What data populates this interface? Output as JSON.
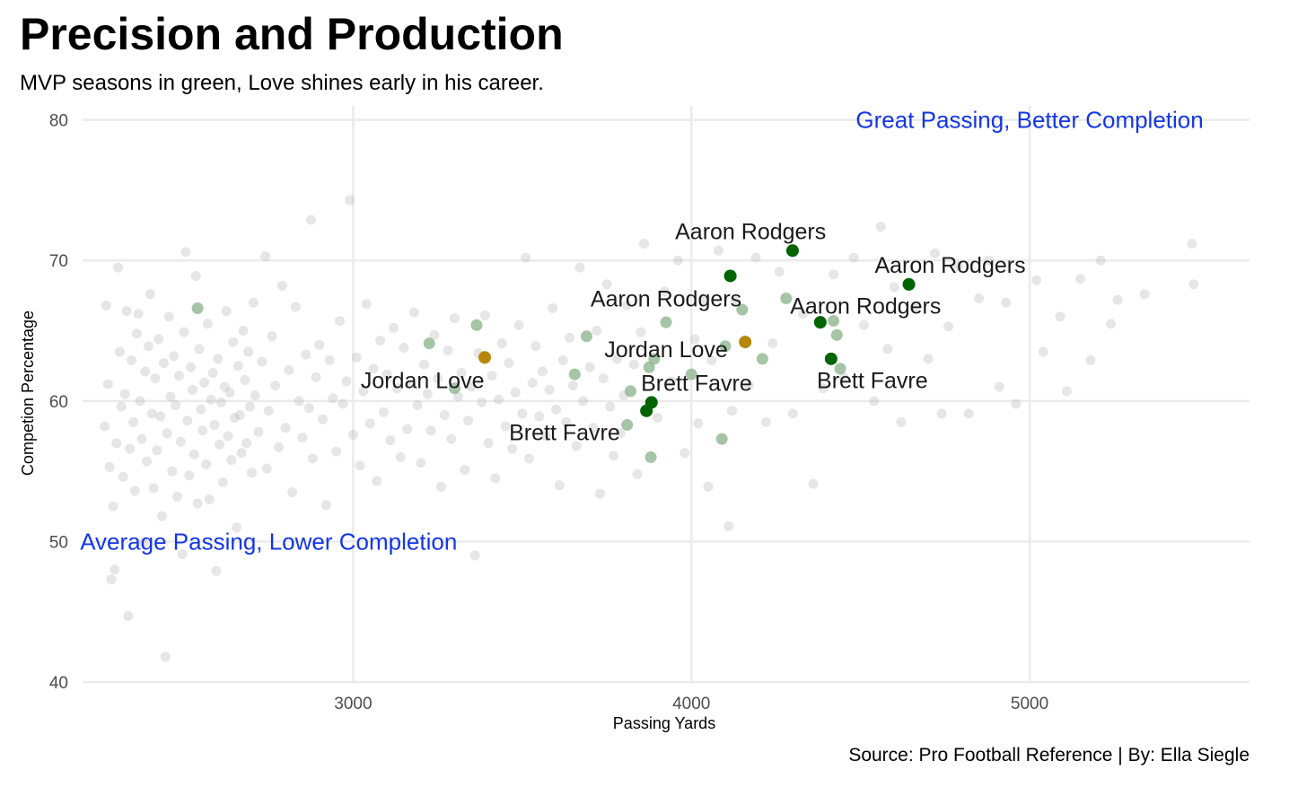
{
  "title": "Precision and Production",
  "subtitle": "MVP seasons in green, Love shines early in his career.",
  "caption": "Source: Pro Football Reference  | By: Ella Siegle",
  "chart_data": {
    "type": "scatter",
    "xlabel": "Passing Yards",
    "ylabel": "Competion Percentage",
    "xlim": [
      2200,
      5650
    ],
    "ylim": [
      40,
      81
    ],
    "xticks": [
      3000,
      4000,
      5000
    ],
    "yticks": [
      40,
      50,
      60,
      70,
      80
    ],
    "grid": true,
    "colors": {
      "background_points": "#bdbdbd",
      "faded_green": "#88b088",
      "mvp": "#006400",
      "love": "#b8860b",
      "annotation": "#1436e6",
      "grid": "#ebebeb"
    },
    "annotations": [
      {
        "text": "Great Passing, Better Completion",
        "x": 5000,
        "y": 80,
        "color": "#1436e6"
      },
      {
        "text": "Average Passing, Lower Completion",
        "x": 2750,
        "y": 50,
        "color": "#1436e6"
      }
    ],
    "highlighted": [
      {
        "name": "Aaron Rodgers",
        "x": 4299,
        "y": 70.7,
        "group": "mvp"
      },
      {
        "name": "Aaron Rodgers",
        "x": 4643,
        "y": 68.3,
        "group": "mvp"
      },
      {
        "name": "Aaron Rodgers",
        "x": 4115,
        "y": 68.9,
        "group": "mvp"
      },
      {
        "name": "Aaron Rodgers",
        "x": 4381,
        "y": 65.6,
        "group": "mvp"
      },
      {
        "name": "Brett Favre",
        "x": 4413,
        "y": 63.0,
        "group": "mvp"
      },
      {
        "name": "Brett Favre",
        "x": 3882,
        "y": 59.9,
        "group": "mvp"
      },
      {
        "name": "Brett Favre",
        "x": 3867,
        "y": 59.3,
        "group": "mvp"
      },
      {
        "name": "Jordan Love",
        "x": 4159,
        "y": 64.2,
        "group": "love"
      },
      {
        "name": "Jordan Love",
        "x": 3389,
        "y": 63.1,
        "group": "love"
      }
    ],
    "labels": [
      {
        "text": "Aaron Rodgers",
        "x": 4175,
        "y": 72.1
      },
      {
        "text": "Aaron Rodgers",
        "x": 4765,
        "y": 69.7
      },
      {
        "text": "Aaron Rodgers",
        "x": 3925,
        "y": 67.3
      },
      {
        "text": "Aaron Rodgers",
        "x": 4515,
        "y": 66.8
      },
      {
        "text": "Jordan Love",
        "x": 3925,
        "y": 63.7
      },
      {
        "text": "Jordan Love",
        "x": 3205,
        "y": 61.5
      },
      {
        "text": "Brett Favre",
        "x": 4015,
        "y": 61.3
      },
      {
        "text": "Brett Favre",
        "x": 4535,
        "y": 61.5
      },
      {
        "text": "Brett Favre",
        "x": 3625,
        "y": 57.8
      }
    ],
    "faded_green": [
      [
        2540,
        66.6
      ],
      [
        3225,
        64.1
      ],
      [
        3300,
        60.9
      ],
      [
        3365,
        65.4
      ],
      [
        3655,
        61.9
      ],
      [
        3690,
        64.6
      ],
      [
        3810,
        58.3
      ],
      [
        3820,
        60.7
      ],
      [
        3875,
        62.4
      ],
      [
        3890,
        63.0
      ],
      [
        3880,
        56.0
      ],
      [
        3925,
        65.6
      ],
      [
        4000,
        61.9
      ],
      [
        4090,
        57.3
      ],
      [
        4100,
        63.9
      ],
      [
        4150,
        66.5
      ],
      [
        4210,
        63.0
      ],
      [
        4280,
        67.3
      ],
      [
        4420,
        65.7
      ],
      [
        4430,
        64.7
      ],
      [
        4440,
        62.3
      ]
    ],
    "background": [
      [
        2265,
        58.2
      ],
      [
        2270,
        66.8
      ],
      [
        2275,
        61.2
      ],
      [
        2280,
        55.3
      ],
      [
        2285,
        47.3
      ],
      [
        2290,
        52.5
      ],
      [
        2295,
        48.0
      ],
      [
        2300,
        57.0
      ],
      [
        2305,
        69.5
      ],
      [
        2310,
        63.5
      ],
      [
        2315,
        59.6
      ],
      [
        2320,
        54.6
      ],
      [
        2325,
        60.5
      ],
      [
        2330,
        66.4
      ],
      [
        2335,
        44.7
      ],
      [
        2340,
        56.6
      ],
      [
        2345,
        62.9
      ],
      [
        2350,
        58.5
      ],
      [
        2355,
        53.6
      ],
      [
        2360,
        64.8
      ],
      [
        2365,
        66.2
      ],
      [
        2370,
        60.0
      ],
      [
        2375,
        57.3
      ],
      [
        2380,
        49.9
      ],
      [
        2385,
        62.1
      ],
      [
        2390,
        55.7
      ],
      [
        2395,
        63.9
      ],
      [
        2400,
        67.6
      ],
      [
        2405,
        59.1
      ],
      [
        2410,
        53.8
      ],
      [
        2415,
        61.6
      ],
      [
        2420,
        56.5
      ],
      [
        2425,
        64.4
      ],
      [
        2430,
        58.9
      ],
      [
        2435,
        51.8
      ],
      [
        2440,
        62.7
      ],
      [
        2445,
        41.8
      ],
      [
        2450,
        57.7
      ],
      [
        2455,
        66.0
      ],
      [
        2460,
        60.3
      ],
      [
        2465,
        55.0
      ],
      [
        2470,
        63.2
      ],
      [
        2475,
        59.7
      ],
      [
        2480,
        53.2
      ],
      [
        2485,
        61.8
      ],
      [
        2490,
        57.1
      ],
      [
        2495,
        49.1
      ],
      [
        2500,
        64.9
      ],
      [
        2505,
        70.6
      ],
      [
        2510,
        58.6
      ],
      [
        2515,
        54.7
      ],
      [
        2520,
        62.4
      ],
      [
        2525,
        60.8
      ],
      [
        2530,
        56.2
      ],
      [
        2535,
        68.9
      ],
      [
        2540,
        52.7
      ],
      [
        2545,
        63.7
      ],
      [
        2550,
        59.4
      ],
      [
        2555,
        57.9
      ],
      [
        2560,
        61.3
      ],
      [
        2565,
        55.5
      ],
      [
        2570,
        65.5
      ],
      [
        2575,
        53.0
      ],
      [
        2580,
        60.1
      ],
      [
        2585,
        62.0
      ],
      [
        2590,
        58.3
      ],
      [
        2595,
        47.9
      ],
      [
        2600,
        63.0
      ],
      [
        2605,
        56.9
      ],
      [
        2610,
        59.9
      ],
      [
        2615,
        54.2
      ],
      [
        2620,
        61.0
      ],
      [
        2625,
        66.4
      ],
      [
        2630,
        57.5
      ],
      [
        2635,
        60.6
      ],
      [
        2640,
        55.8
      ],
      [
        2645,
        64.2
      ],
      [
        2650,
        58.8
      ],
      [
        2655,
        51.0
      ],
      [
        2660,
        62.5
      ],
      [
        2665,
        59.0
      ],
      [
        2670,
        56.3
      ],
      [
        2675,
        65.0
      ],
      [
        2680,
        61.5
      ],
      [
        2685,
        57.0
      ],
      [
        2690,
        63.5
      ],
      [
        2695,
        59.6
      ],
      [
        2700,
        54.9
      ],
      [
        2705,
        67.0
      ],
      [
        2710,
        60.4
      ],
      [
        2720,
        57.8
      ],
      [
        2730,
        62.8
      ],
      [
        2740,
        70.3
      ],
      [
        2745,
        55.2
      ],
      [
        2750,
        59.3
      ],
      [
        2760,
        64.6
      ],
      [
        2770,
        61.1
      ],
      [
        2780,
        56.7
      ],
      [
        2790,
        68.2
      ],
      [
        2800,
        58.1
      ],
      [
        2810,
        62.2
      ],
      [
        2820,
        53.5
      ],
      [
        2830,
        66.7
      ],
      [
        2840,
        60.0
      ],
      [
        2850,
        57.4
      ],
      [
        2860,
        63.3
      ],
      [
        2870,
        59.5
      ],
      [
        2875,
        72.9
      ],
      [
        2880,
        55.9
      ],
      [
        2890,
        61.7
      ],
      [
        2900,
        64.0
      ],
      [
        2910,
        58.7
      ],
      [
        2920,
        52.6
      ],
      [
        2930,
        62.9
      ],
      [
        2940,
        60.2
      ],
      [
        2950,
        56.4
      ],
      [
        2960,
        65.7
      ],
      [
        2970,
        59.8
      ],
      [
        2980,
        61.4
      ],
      [
        2990,
        74.3
      ],
      [
        3000,
        57.6
      ],
      [
        3010,
        63.1
      ],
      [
        3020,
        55.4
      ],
      [
        3030,
        60.7
      ],
      [
        3040,
        66.9
      ],
      [
        3050,
        58.4
      ],
      [
        3060,
        62.3
      ],
      [
        3070,
        54.3
      ],
      [
        3080,
        64.3
      ],
      [
        3090,
        59.2
      ],
      [
        3100,
        61.9
      ],
      [
        3110,
        57.2
      ],
      [
        3120,
        65.2
      ],
      [
        3130,
        60.9
      ],
      [
        3140,
        56.0
      ],
      [
        3150,
        63.8
      ],
      [
        3160,
        58.0
      ],
      [
        3170,
        61.2
      ],
      [
        3180,
        66.3
      ],
      [
        3190,
        59.7
      ],
      [
        3200,
        55.6
      ],
      [
        3210,
        62.6
      ],
      [
        3220,
        60.5
      ],
      [
        3230,
        57.9
      ],
      [
        3240,
        64.7
      ],
      [
        3250,
        61.6
      ],
      [
        3260,
        53.9
      ],
      [
        3270,
        59.0
      ],
      [
        3280,
        63.6
      ],
      [
        3290,
        57.3
      ],
      [
        3300,
        65.9
      ],
      [
        3310,
        60.3
      ],
      [
        3320,
        62.0
      ],
      [
        3330,
        55.1
      ],
      [
        3340,
        58.6
      ],
      [
        3350,
        61.0
      ],
      [
        3360,
        49.0
      ],
      [
        3370,
        63.4
      ],
      [
        3380,
        59.9
      ],
      [
        3390,
        66.1
      ],
      [
        3400,
        57.0
      ],
      [
        3410,
        61.8
      ],
      [
        3420,
        54.5
      ],
      [
        3430,
        60.1
      ],
      [
        3440,
        64.1
      ],
      [
        3450,
        58.2
      ],
      [
        3460,
        62.7
      ],
      [
        3470,
        56.6
      ],
      [
        3480,
        60.6
      ],
      [
        3490,
        65.4
      ],
      [
        3500,
        59.1
      ],
      [
        3510,
        70.2
      ],
      [
        3520,
        55.9
      ],
      [
        3530,
        61.3
      ],
      [
        3540,
        63.9
      ],
      [
        3550,
        58.9
      ],
      [
        3560,
        62.1
      ],
      [
        3570,
        57.5
      ],
      [
        3580,
        60.8
      ],
      [
        3590,
        66.6
      ],
      [
        3600,
        59.4
      ],
      [
        3610,
        54.0
      ],
      [
        3620,
        62.9
      ],
      [
        3630,
        58.5
      ],
      [
        3640,
        64.5
      ],
      [
        3650,
        61.1
      ],
      [
        3660,
        56.8
      ],
      [
        3670,
        69.5
      ],
      [
        3680,
        60.0
      ],
      [
        3700,
        62.4
      ],
      [
        3710,
        58.1
      ],
      [
        3720,
        65.0
      ],
      [
        3730,
        53.4
      ],
      [
        3740,
        61.6
      ],
      [
        3750,
        68.3
      ],
      [
        3760,
        59.6
      ],
      [
        3770,
        56.1
      ],
      [
        3780,
        63.0
      ],
      [
        3790,
        57.7
      ],
      [
        3800,
        60.4
      ],
      [
        3810,
        66.8
      ],
      [
        3830,
        62.6
      ],
      [
        3840,
        54.8
      ],
      [
        3850,
        64.9
      ],
      [
        3860,
        71.2
      ],
      [
        3900,
        58.8
      ],
      [
        3920,
        67.8
      ],
      [
        3940,
        61.4
      ],
      [
        3960,
        70.0
      ],
      [
        3980,
        56.3
      ],
      [
        4010,
        64.4
      ],
      [
        4020,
        58.4
      ],
      [
        4040,
        67.2
      ],
      [
        4050,
        53.9
      ],
      [
        4060,
        62.9
      ],
      [
        4080,
        70.7
      ],
      [
        4110,
        51.1
      ],
      [
        4120,
        59.3
      ],
      [
        4130,
        67.1
      ],
      [
        4170,
        61.1
      ],
      [
        4190,
        70.2
      ],
      [
        4220,
        58.5
      ],
      [
        4240,
        64.1
      ],
      [
        4260,
        69.2
      ],
      [
        4300,
        59.1
      ],
      [
        4330,
        66.2
      ],
      [
        4360,
        54.1
      ],
      [
        4390,
        60.9
      ],
      [
        4420,
        69.0
      ],
      [
        4450,
        61.7
      ],
      [
        4480,
        70.2
      ],
      [
        4510,
        65.4
      ],
      [
        4540,
        60.0
      ],
      [
        4560,
        72.4
      ],
      [
        4580,
        63.7
      ],
      [
        4600,
        68.1
      ],
      [
        4620,
        58.5
      ],
      [
        4660,
        66.6
      ],
      [
        4700,
        63.0
      ],
      [
        4720,
        70.5
      ],
      [
        4740,
        59.1
      ],
      [
        4760,
        65.3
      ],
      [
        4790,
        69.6
      ],
      [
        4820,
        59.1
      ],
      [
        4850,
        67.3
      ],
      [
        4880,
        70.0
      ],
      [
        4910,
        61.0
      ],
      [
        4930,
        67.0
      ],
      [
        4960,
        59.8
      ],
      [
        5020,
        68.6
      ],
      [
        5040,
        63.5
      ],
      [
        5090,
        66.0
      ],
      [
        5110,
        60.7
      ],
      [
        5150,
        68.7
      ],
      [
        5180,
        62.9
      ],
      [
        5210,
        70.0
      ],
      [
        5240,
        65.5
      ],
      [
        5260,
        67.2
      ],
      [
        5340,
        67.6
      ],
      [
        5480,
        71.2
      ],
      [
        5485,
        68.3
      ]
    ]
  }
}
